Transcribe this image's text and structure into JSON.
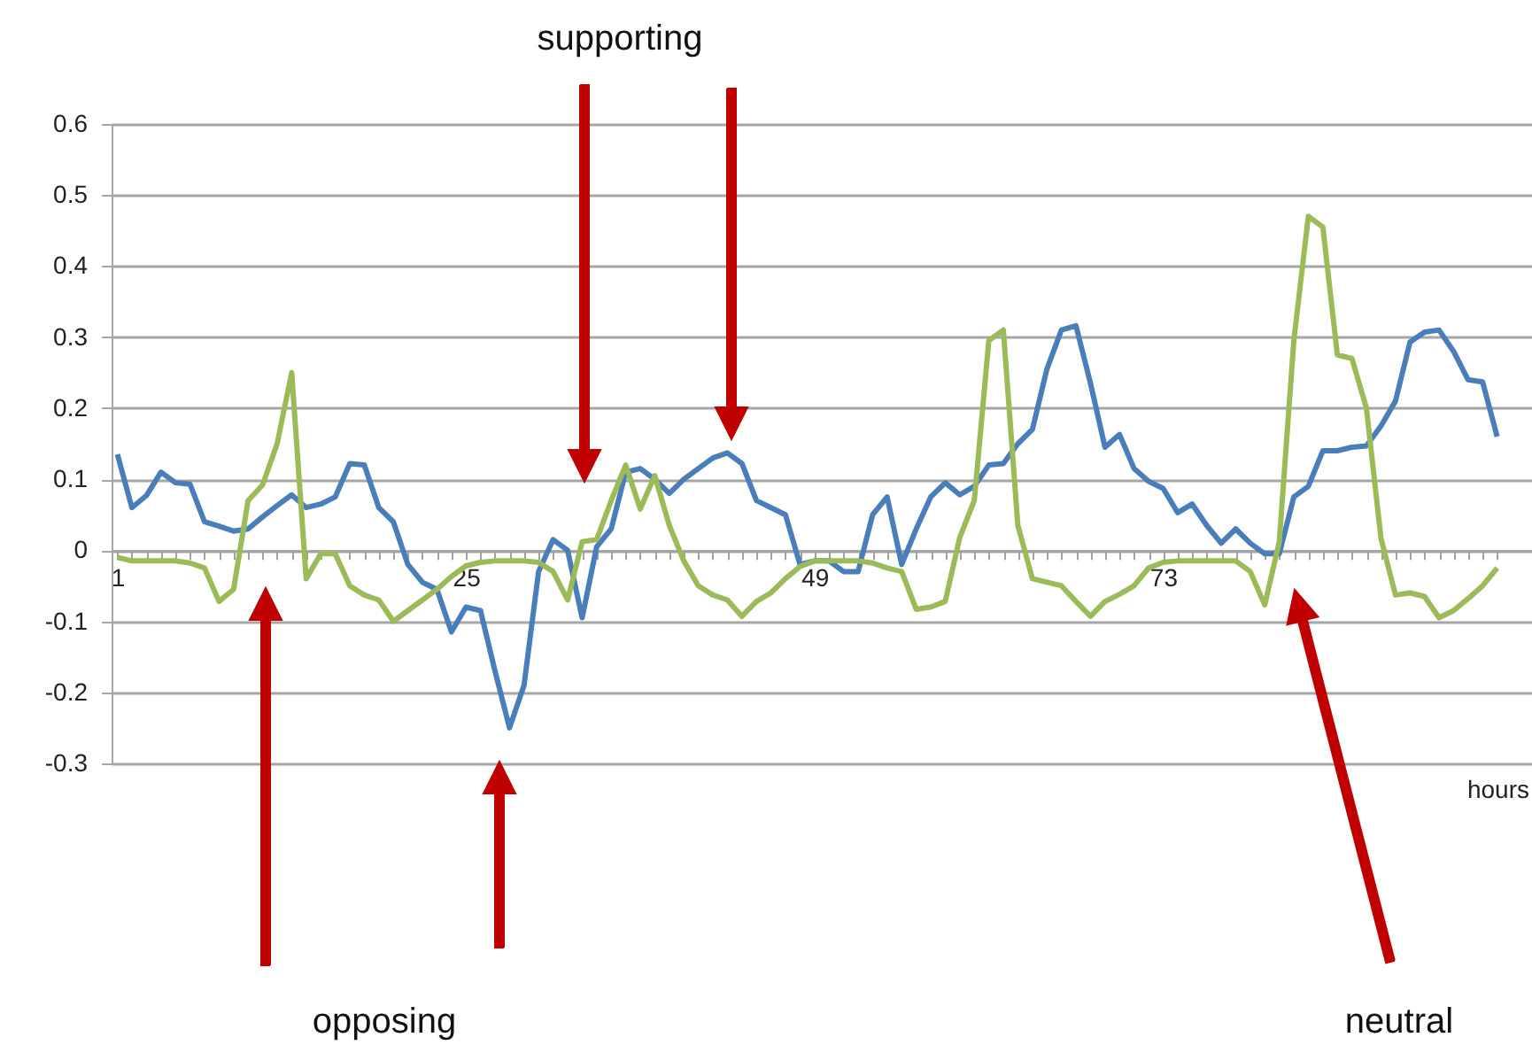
{
  "chart_data": {
    "type": "line",
    "xlabel": "hours",
    "annotations": [
      "supporting",
      "opposing",
      "neutral"
    ],
    "x": [
      1,
      2,
      3,
      4,
      5,
      6,
      7,
      8,
      9,
      10,
      11,
      12,
      13,
      14,
      15,
      16,
      17,
      18,
      19,
      20,
      21,
      22,
      23,
      24,
      25,
      26,
      27,
      28,
      29,
      30,
      31,
      32,
      33,
      34,
      35,
      36,
      37,
      38,
      39,
      40,
      41,
      42,
      43,
      44,
      45,
      46,
      47,
      48,
      49,
      50,
      51,
      52,
      53,
      54,
      55,
      56,
      57,
      58,
      59,
      60,
      61,
      62,
      63,
      64,
      65,
      66,
      67,
      68,
      69,
      70,
      71,
      72,
      73,
      74,
      75,
      76,
      77,
      78,
      79,
      80,
      81,
      82,
      83,
      84,
      85,
      86,
      87,
      88,
      89,
      90,
      91,
      92,
      93,
      94,
      95,
      96
    ],
    "series": [
      {
        "color": "#4a7ebb",
        "values": [
          0.135,
          0.06,
          0.077,
          0.11,
          0.095,
          0.093,
          0.04,
          0.034,
          0.027,
          0.03,
          0.047,
          0.063,
          0.078,
          0.06,
          0.065,
          0.075,
          0.122,
          0.12,
          0.06,
          0.04,
          -0.02,
          -0.045,
          -0.055,
          -0.115,
          -0.08,
          -0.085,
          -0.17,
          -0.25,
          -0.19,
          -0.03,
          0.015,
          0.0,
          -0.095,
          0.005,
          0.03,
          0.11,
          0.115,
          0.1,
          0.08,
          0.1,
          0.115,
          0.13,
          0.137,
          0.122,
          0.07,
          0.06,
          0.05,
          -0.02,
          -0.015,
          -0.015,
          -0.03,
          -0.03,
          0.05,
          0.075,
          -0.02,
          0.03,
          0.075,
          0.095,
          0.078,
          0.09,
          0.12,
          0.122,
          0.15,
          0.17,
          0.255,
          0.31,
          0.316,
          0.235,
          0.145,
          0.163,
          0.115,
          0.097,
          0.087,
          0.053,
          0.065,
          0.035,
          0.01,
          0.03,
          0.01,
          -0.005,
          -0.005,
          0.075,
          0.09,
          0.14,
          0.14,
          0.145,
          0.147,
          0.175,
          0.21,
          0.293,
          0.307,
          0.31,
          0.28,
          0.24,
          0.237,
          0.16
        ]
      },
      {
        "color": "#9bbb59",
        "values": [
          -0.01,
          -0.015,
          -0.015,
          -0.015,
          -0.015,
          -0.018,
          -0.025,
          -0.072,
          -0.055,
          0.07,
          0.092,
          0.15,
          0.25,
          -0.04,
          -0.005,
          -0.005,
          -0.05,
          -0.063,
          -0.07,
          -0.1,
          -0.085,
          -0.07,
          -0.055,
          -0.037,
          -0.022,
          -0.017,
          -0.015,
          -0.015,
          -0.015,
          -0.017,
          -0.03,
          -0.07,
          0.012,
          0.015,
          0.07,
          0.12,
          0.058,
          0.105,
          0.035,
          -0.015,
          -0.05,
          -0.063,
          -0.07,
          -0.093,
          -0.072,
          -0.06,
          -0.04,
          -0.023,
          -0.015,
          -0.015,
          -0.015,
          -0.015,
          -0.018,
          -0.025,
          -0.03,
          -0.083,
          -0.08,
          -0.072,
          0.018,
          0.07,
          0.295,
          0.31,
          0.035,
          -0.04,
          -0.045,
          -0.05,
          -0.072,
          -0.093,
          -0.072,
          -0.062,
          -0.05,
          -0.025,
          -0.017,
          -0.015,
          -0.015,
          -0.015,
          -0.015,
          -0.015,
          -0.03,
          -0.077,
          0.012,
          0.295,
          0.47,
          0.455,
          0.275,
          0.27,
          0.2,
          0.017,
          -0.063,
          -0.06,
          -0.065,
          -0.095,
          -0.085,
          -0.068,
          -0.05,
          -0.025
        ]
      }
    ],
    "xlim": [
      0.6,
      98.4
    ],
    "xticks": [
      1,
      {
        "value": 2,
        "label": null
      },
      {
        "value": 3,
        "label": null
      },
      {
        "value": 4,
        "label": null
      },
      {
        "value": 5,
        "label": null
      },
      {
        "value": 6,
        "label": null
      },
      {
        "value": 7,
        "label": null
      },
      {
        "value": 8,
        "label": null
      },
      {
        "value": 9,
        "label": null
      },
      {
        "value": 10,
        "label": null
      },
      {
        "value": 11,
        "label": null
      },
      {
        "value": 12,
        "label": null
      },
      {
        "value": 13,
        "label": null
      },
      {
        "value": 14,
        "label": null
      },
      {
        "value": 15,
        "label": null
      },
      {
        "value": 16,
        "label": null
      },
      {
        "value": 17,
        "label": null
      },
      {
        "value": 18,
        "label": null
      },
      {
        "value": 19,
        "label": null
      },
      {
        "value": 20,
        "label": null
      },
      {
        "value": 21,
        "label": null
      },
      {
        "value": 22,
        "label": null
      },
      {
        "value": 23,
        "label": null
      },
      {
        "value": 24,
        "label": null
      },
      25,
      {
        "value": 26,
        "label": null
      },
      {
        "value": 27,
        "label": null
      },
      {
        "value": 28,
        "label": null
      },
      {
        "value": 29,
        "label": null
      },
      {
        "value": 30,
        "label": null
      },
      {
        "value": 31,
        "label": null
      },
      {
        "value": 32,
        "label": null
      },
      {
        "value": 33,
        "label": null
      },
      {
        "value": 34,
        "label": null
      },
      {
        "value": 35,
        "label": null
      },
      {
        "value": 36,
        "label": null
      },
      {
        "value": 37,
        "label": null
      },
      {
        "value": 38,
        "label": null
      },
      {
        "value": 39,
        "label": null
      },
      {
        "value": 40,
        "label": null
      },
      {
        "value": 41,
        "label": null
      },
      {
        "value": 42,
        "label": null
      },
      {
        "value": 43,
        "label": null
      },
      {
        "value": 44,
        "label": null
      },
      {
        "value": 45,
        "label": null
      },
      {
        "value": 46,
        "label": null
      },
      {
        "value": 47,
        "label": null
      },
      {
        "value": 48,
        "label": null
      },
      49,
      {
        "value": 50,
        "label": null
      },
      {
        "value": 51,
        "label": null
      },
      {
        "value": 52,
        "label": null
      },
      {
        "value": 53,
        "label": null
      },
      {
        "value": 54,
        "label": null
      },
      {
        "value": 55,
        "label": null
      },
      {
        "value": 56,
        "label": null
      },
      {
        "value": 57,
        "label": null
      },
      {
        "value": 58,
        "label": null
      },
      {
        "value": 59,
        "label": null
      },
      {
        "value": 60,
        "label": null
      },
      {
        "value": 61,
        "label": null
      },
      {
        "value": 62,
        "label": null
      },
      {
        "value": 63,
        "label": null
      },
      {
        "value": 64,
        "label": null
      },
      {
        "value": 65,
        "label": null
      },
      {
        "value": 66,
        "label": null
      },
      {
        "value": 67,
        "label": null
      },
      {
        "value": 68,
        "label": null
      },
      {
        "value": 69,
        "label": null
      },
      {
        "value": 70,
        "label": null
      },
      {
        "value": 71,
        "label": null
      },
      {
        "value": 72,
        "label": null
      },
      73,
      {
        "value": 74,
        "label": null
      },
      {
        "value": 75,
        "label": null
      },
      {
        "value": 76,
        "label": null
      },
      {
        "value": 77,
        "label": null
      },
      {
        "value": 78,
        "label": null
      },
      {
        "value": 79,
        "label": null
      },
      {
        "value": 80,
        "label": null
      },
      {
        "value": 81,
        "label": null
      },
      {
        "value": 82,
        "label": null
      },
      {
        "value": 83,
        "label": null
      },
      {
        "value": 84,
        "label": null
      },
      {
        "value": 85,
        "label": null
      },
      {
        "value": 86,
        "label": null
      },
      {
        "value": 87,
        "label": null
      },
      {
        "value": 88,
        "label": null
      },
      {
        "value": 89,
        "label": null
      },
      {
        "value": 90,
        "label": null
      },
      {
        "value": 91,
        "label": null
      },
      {
        "value": 92,
        "label": null
      },
      {
        "value": 93,
        "label": null
      },
      {
        "value": 94,
        "label": null
      },
      {
        "value": 95,
        "label": null
      },
      {
        "value": 96,
        "label": null
      }
    ],
    "ylim": [
      -0.3,
      0.6
    ],
    "yticks": [
      -0.3,
      -0.2,
      -0.1,
      0,
      0.1,
      0.2,
      0.3,
      0.4,
      0.5,
      0.6
    ],
    "grid": "y",
    "legend": false,
    "marker": "none",
    "line_style": "solid"
  }
}
